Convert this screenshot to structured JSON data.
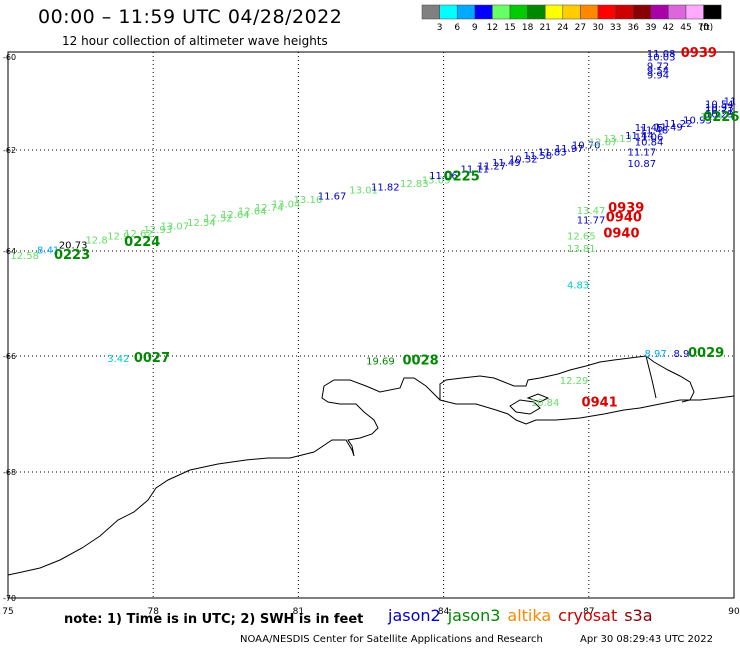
{
  "header": {
    "title": "00:00  –  11:59  UTC  04/28/2022",
    "subtitle": "12 hour collection of altimeter wave heights"
  },
  "legend": {
    "bins": [
      {
        "label": "3",
        "color": "#808080"
      },
      {
        "label": "6",
        "color": "#00ffff"
      },
      {
        "label": "9",
        "color": "#00aaff"
      },
      {
        "label": "12",
        "color": "#0000ff"
      },
      {
        "label": "15",
        "color": "#66ff66"
      },
      {
        "label": "18",
        "color": "#00cc00"
      },
      {
        "label": "21",
        "color": "#008800"
      },
      {
        "label": "24",
        "color": "#ffff00"
      },
      {
        "label": "27",
        "color": "#ffcc00"
      },
      {
        "label": "30",
        "color": "#ff8800"
      },
      {
        "label": "33",
        "color": "#ff0000"
      },
      {
        "label": "36",
        "color": "#cc0000"
      },
      {
        "label": "39",
        "color": "#880000"
      },
      {
        "label": "42",
        "color": "#aa00aa"
      },
      {
        "label": "45",
        "color": "#dd66dd"
      },
      {
        "label": "70",
        "color": "#ffaaff"
      },
      {
        "label": "",
        "color": "#000000"
      }
    ],
    "unit": "(ft)"
  },
  "axes": {
    "x_ticks": [
      "75",
      "78",
      "81",
      "84",
      "87",
      "90"
    ],
    "y_ticks": [
      "-60",
      "-62",
      "-64",
      "-66",
      "-68",
      "-70"
    ]
  },
  "satellites": [
    {
      "name": "jason2",
      "color": "#0000cc"
    },
    {
      "name": "jason3",
      "color": "#008800"
    },
    {
      "name": "altika",
      "color": "#ff8800"
    },
    {
      "name": "cryosat",
      "color": "#cc0000"
    },
    {
      "name": "s3a",
      "color": "#880000"
    }
  ],
  "footer": {
    "note": "note:  1) Time is in UTC;  2) SWH is in feet",
    "credit": "NOAA/NESDIS Center for Satellite Applications and Research",
    "generated": "Apr 30 08:29:43 UTC 2022"
  },
  "observations": [
    {
      "text": "12.58",
      "lon": 75.05,
      "lat": -64.15,
      "color": "#66dd66"
    },
    {
      "text": "8.41",
      "lon": 75.6,
      "lat": -64.05,
      "color": "#00aaff"
    },
    {
      "text": "20.73",
      "lon": 76.05,
      "lat": -63.95,
      "color": "#000000"
    },
    {
      "text": "12.8",
      "lon": 76.6,
      "lat": -63.85,
      "color": "#66dd66"
    },
    {
      "text": "12.9",
      "lon": 77.05,
      "lat": -63.77,
      "color": "#66dd66"
    },
    {
      "text": "12.62",
      "lon": 77.4,
      "lat": -63.72,
      "color": "#66dd66"
    },
    {
      "text": "12.93",
      "lon": 77.8,
      "lat": -63.64,
      "color": "#66dd66"
    },
    {
      "text": "13.07",
      "lon": 78.15,
      "lat": -63.57,
      "color": "#66dd66"
    },
    {
      "text": "12.54",
      "lon": 78.7,
      "lat": -63.5,
      "color": "#66dd66"
    },
    {
      "text": "12.52",
      "lon": 79.05,
      "lat": -63.42,
      "color": "#66dd66"
    },
    {
      "text": "12.64",
      "lon": 79.4,
      "lat": -63.35,
      "color": "#66dd66"
    },
    {
      "text": "12.64",
      "lon": 79.75,
      "lat": -63.28,
      "color": "#66dd66"
    },
    {
      "text": "12.74",
      "lon": 80.1,
      "lat": -63.21,
      "color": "#66dd66"
    },
    {
      "text": "13.04",
      "lon": 80.45,
      "lat": -63.14,
      "color": "#66dd66"
    },
    {
      "text": "13.16",
      "lon": 80.9,
      "lat": -63.05,
      "color": "#66dd66"
    },
    {
      "text": "11.67",
      "lon": 81.4,
      "lat": -62.98,
      "color": "#0000cc"
    },
    {
      "text": "13.01",
      "lon": 82.05,
      "lat": -62.86,
      "color": "#66dd66"
    },
    {
      "text": "11.82",
      "lon": 82.5,
      "lat": -62.8,
      "color": "#0000cc"
    },
    {
      "text": "12.83",
      "lon": 83.1,
      "lat": -62.73,
      "color": "#66dd66"
    },
    {
      "text": "13.05",
      "lon": 83.55,
      "lat": -62.66,
      "color": "#66dd66"
    },
    {
      "text": "11.06",
      "lon": 83.7,
      "lat": -62.57,
      "color": "#0000cc"
    },
    {
      "text": "11.11",
      "lon": 84.35,
      "lat": -62.45,
      "color": "#0000cc"
    },
    {
      "text": "11.27",
      "lon": 84.7,
      "lat": -62.39,
      "color": "#0000cc"
    },
    {
      "text": "11.49",
      "lon": 85.0,
      "lat": -62.32,
      "color": "#0000cc"
    },
    {
      "text": "10.32",
      "lon": 85.35,
      "lat": -62.25,
      "color": "#0000cc"
    },
    {
      "text": "11.58",
      "lon": 85.65,
      "lat": -62.18,
      "color": "#0000cc"
    },
    {
      "text": "11.83",
      "lon": 85.95,
      "lat": -62.11,
      "color": "#0000cc"
    },
    {
      "text": "11.97",
      "lon": 86.3,
      "lat": -62.04,
      "color": "#0000cc"
    },
    {
      "text": "10.70",
      "lon": 86.65,
      "lat": -61.97,
      "color": "#0000cc"
    },
    {
      "text": "12.07",
      "lon": 87.0,
      "lat": -61.9,
      "color": "#66dd66"
    },
    {
      "text": "13.13",
      "lon": 87.3,
      "lat": -61.83,
      "color": "#66dd66"
    },
    {
      "text": "11.44",
      "lon": 87.75,
      "lat": -61.76,
      "color": "#0000cc"
    },
    {
      "text": "11.48",
      "lon": 88.05,
      "lat": -61.65,
      "color": "#0000cc"
    },
    {
      "text": "11.49",
      "lon": 88.35,
      "lat": -61.58,
      "color": "#0000cc"
    },
    {
      "text": "11.22",
      "lon": 88.55,
      "lat": -61.5,
      "color": "#0000cc"
    },
    {
      "text": "10.93",
      "lon": 88.95,
      "lat": -61.43,
      "color": "#0000cc"
    },
    {
      "text": "12.9",
      "lon": 89.3,
      "lat": -61.36,
      "color": "#66dd66"
    },
    {
      "text": "10.29",
      "lon": 89.6,
      "lat": -61.3,
      "color": "#0000cc"
    },
    {
      "text": "10.71",
      "lon": 90.15,
      "lat": -61.23,
      "color": "#0000cc"
    },
    {
      "text": "10.93",
      "lon": 90.5,
      "lat": -61.16,
      "color": "#0000cc"
    },
    {
      "text": "10.54",
      "lon": 90.95,
      "lat": -61.09,
      "color": "#0000cc"
    },
    {
      "text": "11",
      "lon": 91.25,
      "lat": -61.02,
      "color": "#0000cc"
    },
    {
      "text": "11.08",
      "lon": 88.2,
      "lat": -59.97,
      "color": "#0000cc"
    },
    {
      "text": "10.03",
      "lon": 88.2,
      "lat": -60.07,
      "color": "#0000cc"
    },
    {
      "text": "9.72",
      "lon": 88.2,
      "lat": -60.27,
      "color": "#0000cc"
    },
    {
      "text": "9.54",
      "lon": 88.2,
      "lat": -60.37,
      "color": "#0000cc"
    },
    {
      "text": "9.94",
      "lon": 88.2,
      "lat": -60.46,
      "color": "#0000cc"
    },
    {
      "text": "11.45",
      "lon": 87.95,
      "lat": -61.59,
      "color": "#0000cc"
    },
    {
      "text": "11.06",
      "lon": 87.95,
      "lat": -61.8,
      "color": "#0000cc"
    },
    {
      "text": "10.84",
      "lon": 87.95,
      "lat": -61.9,
      "color": "#0000cc"
    },
    {
      "text": "11.17",
      "lon": 87.8,
      "lat": -62.11,
      "color": "#0000cc"
    },
    {
      "text": "10.87",
      "lon": 87.8,
      "lat": -62.34,
      "color": "#0000cc"
    },
    {
      "text": "13.47",
      "lon": 86.75,
      "lat": -63.27,
      "color": "#66dd66"
    },
    {
      "text": "11.77",
      "lon": 86.75,
      "lat": -63.46,
      "color": "#0000cc"
    },
    {
      "text": "12.65",
      "lon": 86.55,
      "lat": -63.77,
      "color": "#66dd66"
    },
    {
      "text": "13.81",
      "lon": 86.55,
      "lat": -64.02,
      "color": "#66dd66"
    },
    {
      "text": "4.83",
      "lon": 86.55,
      "lat": -64.71,
      "color": "#00cccc"
    },
    {
      "text": "3.42",
      "lon": 77.05,
      "lat": -66.1,
      "color": "#00cccc"
    },
    {
      "text": "19.69",
      "lon": 82.4,
      "lat": -66.15,
      "color": "#008800"
    },
    {
      "text": "12.29",
      "lon": 86.4,
      "lat": -66.48,
      "color": "#66dd66"
    },
    {
      "text": "8.97",
      "lon": 88.15,
      "lat": -66.02,
      "color": "#00aaff"
    },
    {
      "text": "8.9",
      "lon": 88.75,
      "lat": -66.02,
      "color": "#0000cc"
    },
    {
      "text": "10.84",
      "lon": 85.8,
      "lat": -66.86,
      "color": "#66dd66"
    }
  ],
  "pass_times": [
    {
      "text": "0939",
      "lon": 88.9,
      "lat": -59.97,
      "color": "#dd0000"
    },
    {
      "text": "0226",
      "lon": 90.05,
      "lat": -61.38,
      "color": "#008800"
    },
    {
      "text": "0225",
      "lon": 84.0,
      "lat": -62.6,
      "color": "#008800"
    },
    {
      "text": "0224",
      "lon": 77.4,
      "lat": -63.9,
      "color": "#008800"
    },
    {
      "text": "0223",
      "lon": 75.95,
      "lat": -64.15,
      "color": "#008800"
    },
    {
      "text": "0939",
      "lon": 87.4,
      "lat": -63.23,
      "color": "#dd0000"
    },
    {
      "text": "0940",
      "lon": 87.35,
      "lat": -63.42,
      "color": "#dd0000"
    },
    {
      "text": "0940",
      "lon": 87.3,
      "lat": -63.73,
      "color": "#dd0000"
    },
    {
      "text": "0027",
      "lon": 77.6,
      "lat": -66.1,
      "color": "#008800"
    },
    {
      "text": "0028",
      "lon": 83.15,
      "lat": -66.15,
      "color": "#008800"
    },
    {
      "text": "0029",
      "lon": 89.05,
      "lat": -66.02,
      "color": "#008800"
    },
    {
      "text": "0941",
      "lon": 86.85,
      "lat": -66.87,
      "color": "#dd0000"
    }
  ]
}
